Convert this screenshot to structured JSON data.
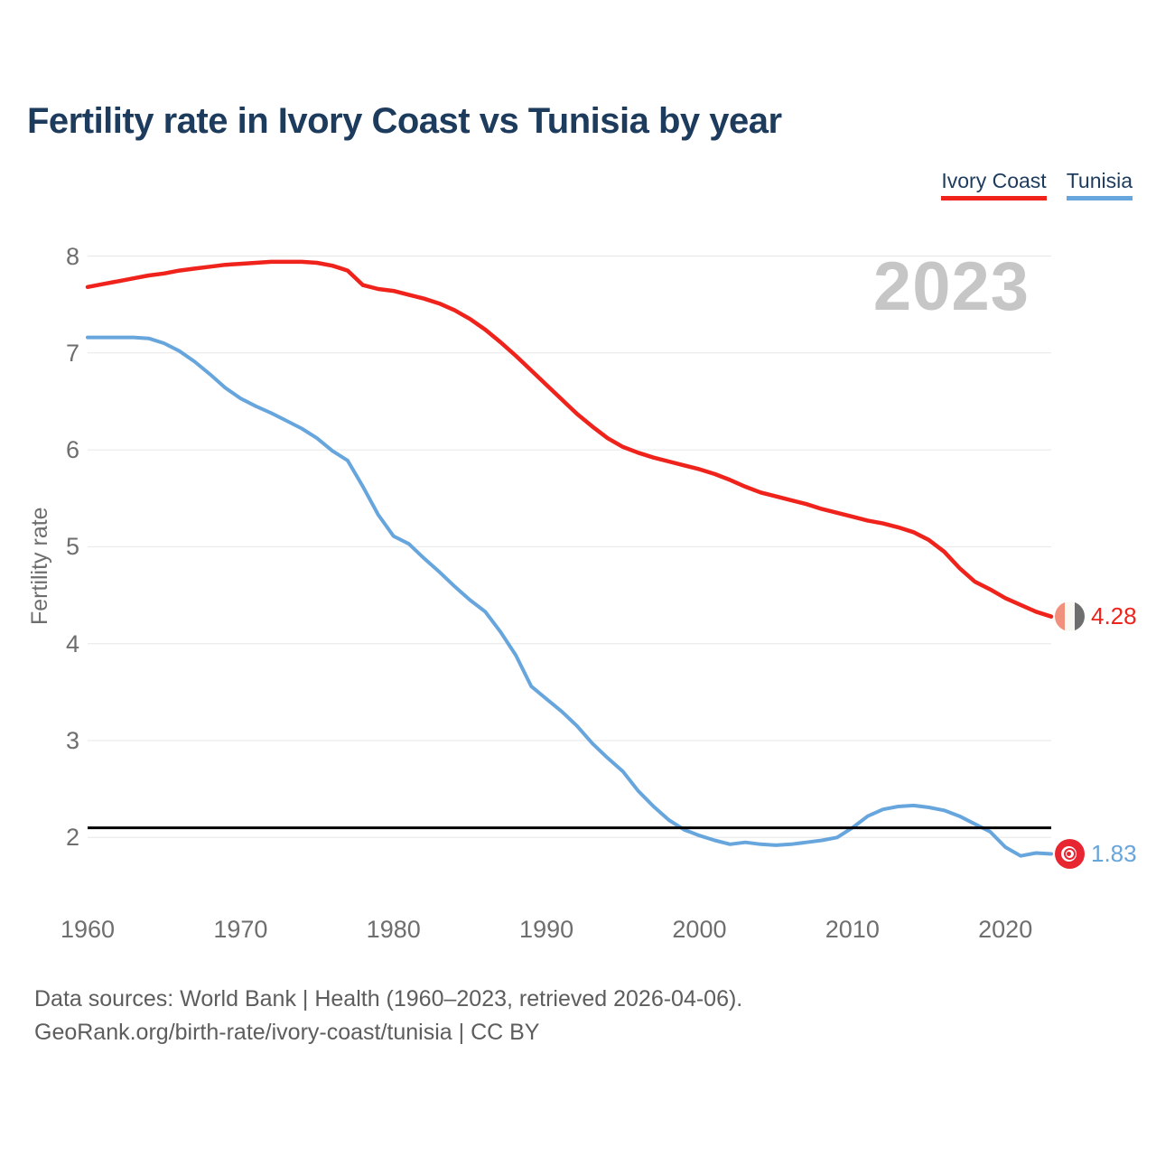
{
  "page": {
    "title": "Fertility rate in Ivory Coast vs Tunisia by year",
    "watermark": "2023",
    "footer_line1": "Data sources: World Bank | Health (1960–2023, retrieved 2026-04-06).",
    "footer_line2": "GeoRank.org/birth-rate/ivory-coast/tunisia | CC BY"
  },
  "legend": {
    "items": [
      {
        "label": "Ivory Coast",
        "color": "#ef231c"
      },
      {
        "label": "Tunisia",
        "color": "#67a5dd"
      }
    ]
  },
  "end_labels": {
    "ivory_coast": "4.28",
    "tunisia": "1.83"
  },
  "icons": {
    "ivory_coast_flag": "ivory-coast-flag",
    "tunisia_flag": "tunisia-flag"
  },
  "colors": {
    "title": "#1d3b5d",
    "axis_text": "#6e6e6e",
    "gridline": "#e7e7e7",
    "watermark": "#c6c6c6",
    "reference_line": "#000000",
    "footer_text": "#5d5d5d"
  },
  "chart_data": {
    "type": "line",
    "title": "Fertility rate in Ivory Coast vs Tunisia by year",
    "xlabel": "",
    "ylabel": "Fertility rate",
    "ylim": [
      2,
      8
    ],
    "yticks": [
      2,
      3,
      4,
      5,
      6,
      7,
      8
    ],
    "xticks": [
      1960,
      1970,
      1980,
      1990,
      2000,
      2010,
      2020
    ],
    "grid": "horizontal",
    "legend_position": "top-right",
    "reference_line": {
      "value": 2.1,
      "color": "#000000",
      "width": 3
    },
    "x": [
      1960,
      1961,
      1962,
      1963,
      1964,
      1965,
      1966,
      1967,
      1968,
      1969,
      1970,
      1971,
      1972,
      1973,
      1974,
      1975,
      1976,
      1977,
      1978,
      1979,
      1980,
      1981,
      1982,
      1983,
      1984,
      1985,
      1986,
      1987,
      1988,
      1989,
      1990,
      1991,
      1992,
      1993,
      1994,
      1995,
      1996,
      1997,
      1998,
      1999,
      2000,
      2001,
      2002,
      2003,
      2004,
      2005,
      2006,
      2007,
      2008,
      2009,
      2010,
      2011,
      2012,
      2013,
      2014,
      2015,
      2016,
      2017,
      2018,
      2019,
      2020,
      2021,
      2022,
      2023
    ],
    "series": [
      {
        "name": "Ivory Coast",
        "color": "#ef231c",
        "width": 4.5,
        "end_value": 4.28,
        "values": [
          7.68,
          7.71,
          7.74,
          7.77,
          7.8,
          7.82,
          7.85,
          7.87,
          7.89,
          7.91,
          7.92,
          7.93,
          7.94,
          7.94,
          7.94,
          7.93,
          7.9,
          7.85,
          7.7,
          7.66,
          7.64,
          7.6,
          7.56,
          7.51,
          7.44,
          7.35,
          7.24,
          7.11,
          6.97,
          6.82,
          6.67,
          6.52,
          6.37,
          6.24,
          6.12,
          6.03,
          5.97,
          5.92,
          5.88,
          5.84,
          5.8,
          5.75,
          5.69,
          5.62,
          5.56,
          5.52,
          5.48,
          5.44,
          5.39,
          5.35,
          5.31,
          5.27,
          5.24,
          5.2,
          5.15,
          5.07,
          4.95,
          4.78,
          4.64,
          4.56,
          4.47,
          4.4,
          4.33,
          4.28
        ]
      },
      {
        "name": "Tunisia",
        "color": "#67a5dd",
        "width": 4,
        "end_value": 1.83,
        "values": [
          7.16,
          7.16,
          7.16,
          7.16,
          7.15,
          7.1,
          7.02,
          6.91,
          6.78,
          6.64,
          6.53,
          6.45,
          6.38,
          6.3,
          6.22,
          6.12,
          5.99,
          5.89,
          5.62,
          5.33,
          5.11,
          5.03,
          4.88,
          4.74,
          4.59,
          4.45,
          4.33,
          4.12,
          3.88,
          3.56,
          3.43,
          3.3,
          3.15,
          2.97,
          2.82,
          2.68,
          2.48,
          2.32,
          2.18,
          2.08,
          2.02,
          1.97,
          1.93,
          1.95,
          1.93,
          1.92,
          1.93,
          1.95,
          1.97,
          2.0,
          2.1,
          2.22,
          2.29,
          2.32,
          2.33,
          2.31,
          2.28,
          2.22,
          2.14,
          2.06,
          1.9,
          1.81,
          1.84,
          1.83
        ]
      }
    ]
  }
}
